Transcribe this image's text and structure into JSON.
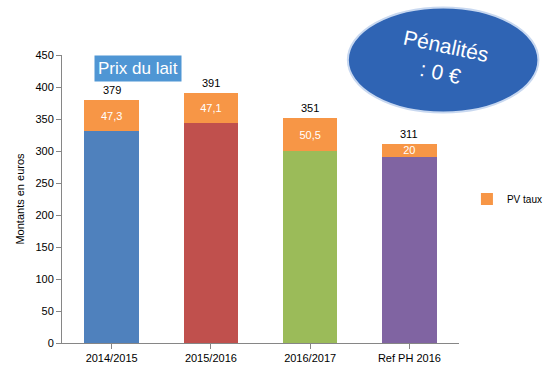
{
  "chart_data": {
    "type": "bar",
    "stacked": true,
    "title": "Prix du lait",
    "y_label": "Montants en euros",
    "categories": [
      "2014/2015",
      "2015/2016",
      "2016/2017",
      "Ref PH 2016"
    ],
    "series": [
      {
        "colors": [
          "#4f81bd",
          "#c0504d",
          "#9bbb59",
          "#8064a2"
        ],
        "values": [
          331.7,
          343.9,
          300.5,
          291
        ]
      },
      {
        "name": "PV taux",
        "color": "#f79646",
        "values": [
          47.3,
          47.1,
          50.5,
          20
        ],
        "data_labels": true,
        "value_labels": [
          "47,3",
          "47,1",
          "50,5",
          "20"
        ]
      }
    ],
    "totals": [
      379,
      391,
      351,
      311
    ],
    "annotation": [
      "Pénalités",
      ": 0 €"
    ],
    "ylim": [
      0,
      450
    ],
    "yticks": [
      0,
      50,
      100,
      150,
      200,
      250,
      300,
      350,
      400,
      450
    ],
    "grid": false,
    "legend": "right"
  }
}
